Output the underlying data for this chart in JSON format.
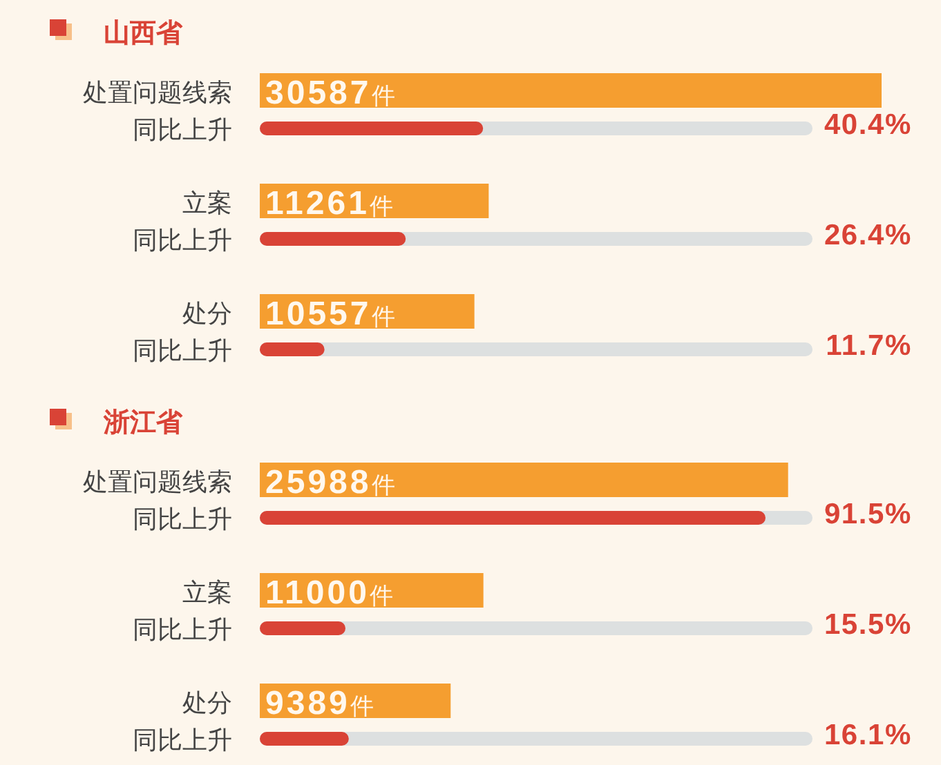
{
  "chart_data": [
    {
      "type": "bar",
      "orientation": "horizontal",
      "title": "山西省",
      "categories": [
        "处置问题线索",
        "立案",
        "处分"
      ],
      "tick_labels": "y",
      "color": "#f59e30",
      "values": [
        30587,
        11261,
        10557
      ],
      "value_labels": [
        "30587件",
        "11261件",
        "10557件"
      ]
    },
    {
      "type": "bar",
      "orientation": "horizontal",
      "categories": [
        "同比上升",
        "同比上升",
        "同比上升"
      ],
      "xlim": [
        0,
        100
      ],
      "tick_labels": "y",
      "color": "#d94336",
      "values": [
        40.4,
        26.4,
        11.7
      ],
      "value_labels": [
        "40.4%",
        "26.4%",
        "11.7%"
      ]
    },
    {
      "type": "bar",
      "orientation": "horizontal",
      "title": "浙江省",
      "categories": [
        "处置问题线索",
        "立案",
        "处分"
      ],
      "tick_labels": "y",
      "color": "#f59e30",
      "values": [
        25988,
        11000,
        9389
      ],
      "value_labels": [
        "25988件",
        "11000件",
        "9389件"
      ]
    },
    {
      "type": "bar",
      "orientation": "horizontal",
      "categories": [
        "同比上升",
        "同比上升",
        "同比上升"
      ],
      "xlim": [
        0,
        100
      ],
      "tick_labels": "y",
      "color": "#d94336",
      "values": [
        91.5,
        15.5,
        16.1
      ],
      "value_labels": [
        "91.5%",
        "15.5%",
        "16.1%"
      ]
    }
  ]
}
